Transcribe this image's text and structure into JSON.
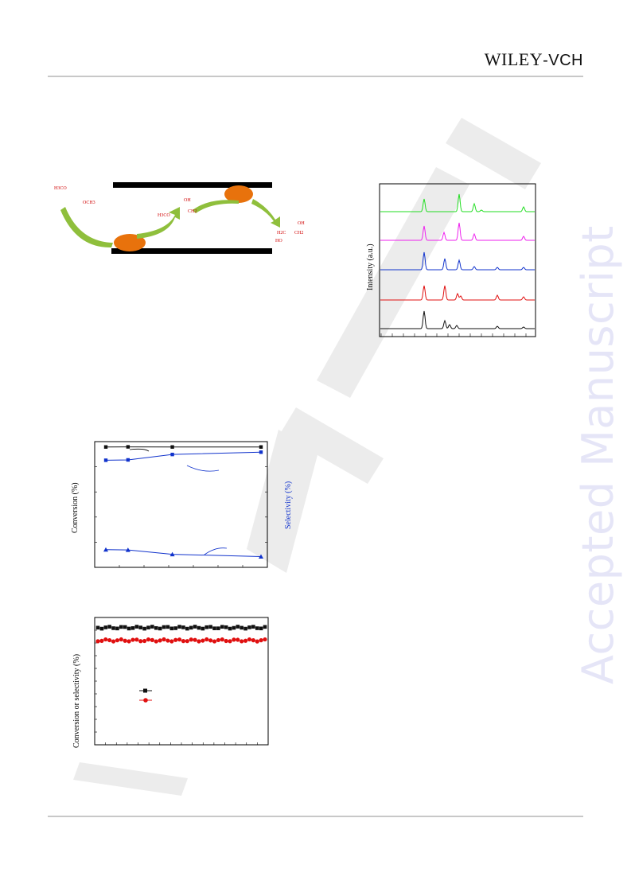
{
  "header": {
    "publisher_logo_main": "WILEY",
    "publisher_logo_suffix": "-VCH"
  },
  "watermark": {
    "side_text": "Accepted Manuscript"
  },
  "scheme": {
    "reactant_label": "H3CO",
    "reactant_sub": "OCH3",
    "intermediate_label_oh": "OH",
    "intermediate_label_ch": "CH2",
    "intermediate_label_h3co": "H3CO",
    "product_label_oh": "OH",
    "product_label_h2c": "H2C",
    "product_label_ch2": "CH2",
    "product_label_ho": "HO",
    "arrow_color": "#8fbf3c",
    "catalyst_color": "#e8720c"
  },
  "chart_data": [
    {
      "type": "line",
      "ylabel": "Intensity (a.u.)",
      "series": [
        {
          "color": "#22dd22"
        },
        {
          "color": "#ee22ee"
        },
        {
          "color": "#1133cc"
        },
        {
          "color": "#e01010"
        },
        {
          "color": "#111111"
        }
      ]
    },
    {
      "type": "line",
      "ylabel": "Conversion (%)",
      "ylabel_right": "Selectivity (%)",
      "x": [
        0,
        1,
        3,
        7
      ],
      "series": [
        {
          "marker": "square",
          "color": "#111111",
          "values": [
            99.5,
            99.6,
            99.5,
            99.5
          ]
        },
        {
          "marker": "square",
          "color": "#1133cc",
          "values": [
            88,
            88.3,
            93,
            95
          ]
        },
        {
          "marker": "triangle",
          "color": "#1133cc",
          "values": [
            10.5,
            10.3,
            6.5,
            4.5
          ]
        }
      ]
    },
    {
      "type": "scatter",
      "ylabel": "Conversion or selectivity (%)",
      "series": [
        {
          "marker": "square",
          "color": "#111111",
          "level": 0.92
        },
        {
          "marker": "circle",
          "color": "#e01010",
          "level": 0.82
        }
      ]
    }
  ]
}
